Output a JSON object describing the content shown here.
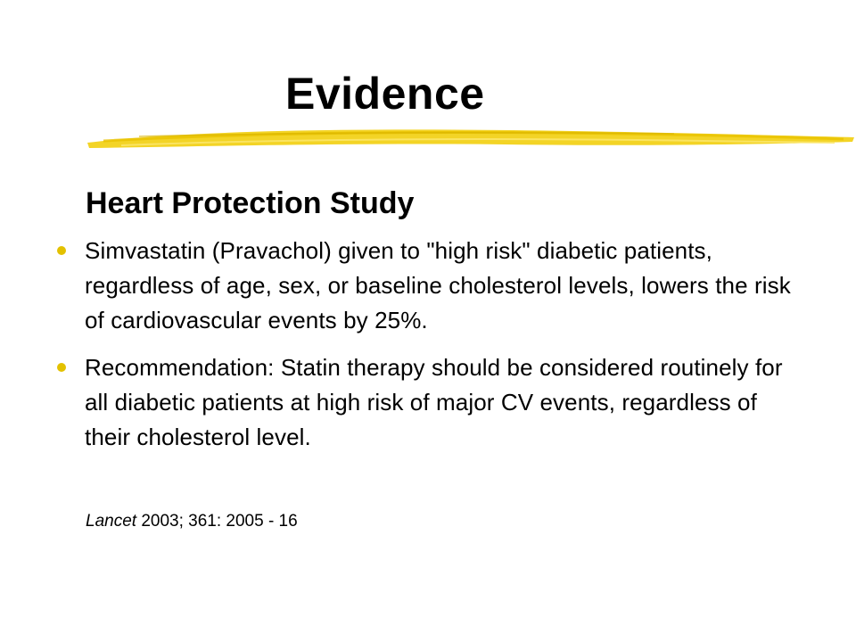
{
  "slide": {
    "title": "Evidence",
    "subtitle": "Heart Protection Study",
    "bullets": [
      "Simvastatin (Pravachol) given to \"high risk\" diabetic patients, regardless of age, sex, or baseline cholesterol levels, lowers the risk of cardiovascular events by 25%.",
      "Recommendation:  Statin therapy should be considered routinely for all diabetic patients at high risk of major CV events, regardless of their cholesterol level."
    ],
    "citation": {
      "journal": "Lancet",
      "details": " 2003; 361: 2005 - 16"
    }
  },
  "colors": {
    "accent": "#e3c100",
    "brush": "#f2d21a"
  }
}
